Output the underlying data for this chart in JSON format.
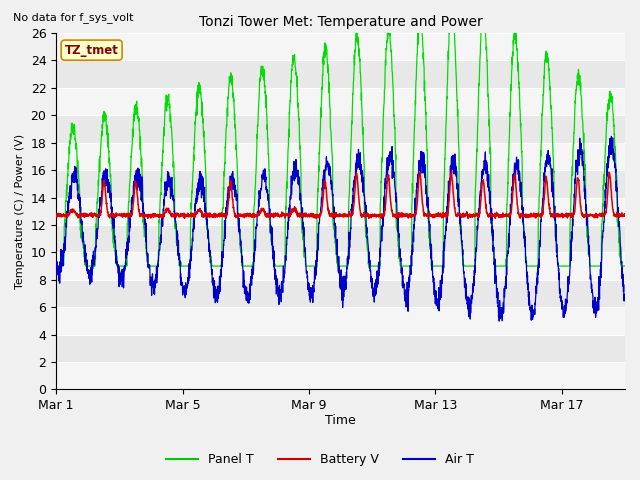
{
  "title": "Tonzi Tower Met: Temperature and Power",
  "xlabel": "Time",
  "ylabel": "Temperature (C) / Power (V)",
  "top_left_text": "No data for f_sys_volt",
  "legend_label_text": "TZ_tmet",
  "ylim": [
    0,
    26
  ],
  "yticks": [
    0,
    2,
    4,
    6,
    8,
    10,
    12,
    14,
    16,
    18,
    20,
    22,
    24,
    26
  ],
  "xtick_labels": [
    "Mar 1",
    "Mar 5",
    "Mar 9",
    "Mar 13",
    "Mar 17"
  ],
  "xtick_positions": [
    0,
    4,
    8,
    12,
    16
  ],
  "total_days": 18,
  "panel_t_color": "#00dd00",
  "battery_v_color": "#dd0000",
  "air_t_color": "#0000cc",
  "legend_entries": [
    "Panel T",
    "Battery V",
    "Air T"
  ],
  "legend_colors": [
    "#00cc00",
    "#cc0000",
    "#0000cc"
  ],
  "band_colors": [
    "#f5f5f5",
    "#e8e8e8"
  ],
  "white_line_color": "#ffffff"
}
